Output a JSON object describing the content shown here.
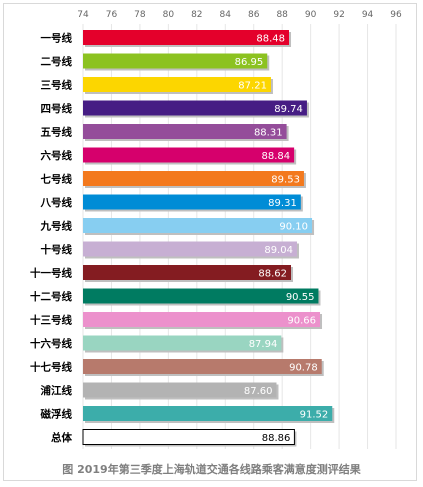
{
  "chart_data": {
    "type": "bar",
    "orientation": "horizontal",
    "title": "图   2019年第三季度上海轨道交通各线路乘客满意度测评结果",
    "xlim": [
      74,
      96
    ],
    "ticks": [
      74,
      76,
      78,
      80,
      82,
      84,
      86,
      88,
      90,
      92,
      94,
      96
    ],
    "grid": true,
    "categories": [
      "一号线",
      "二号线",
      "三号线",
      "四号线",
      "五号线",
      "六号线",
      "七号线",
      "八号线",
      "九号线",
      "十号线",
      "十一号线",
      "十二号线",
      "十三号线",
      "十六号线",
      "十七号线",
      "浦江线",
      "磁浮线",
      "总体"
    ],
    "values": [
      88.48,
      86.95,
      87.21,
      89.74,
      88.31,
      88.84,
      89.53,
      89.31,
      90.1,
      89.04,
      88.62,
      90.55,
      90.66,
      87.94,
      90.78,
      87.6,
      91.52,
      88.86
    ],
    "labels": [
      "88.48",
      "86.95",
      "87.21",
      "89.74",
      "88.31",
      "88.84",
      "89.53",
      "89.31",
      "90.10",
      "89.04",
      "88.62",
      "90.55",
      "90.66",
      "87.94",
      "90.78",
      "87.60",
      "91.52",
      "88.86"
    ],
    "colors": [
      "#e4002b",
      "#8cc220",
      "#fcd600",
      "#461d84",
      "#944d9a",
      "#d6006c",
      "#f3791d",
      "#008cd6",
      "#87cef1",
      "#c7afd3",
      "#841c21",
      "#007b61",
      "#ec91cc",
      "#99d5c1",
      "#b77a6c",
      "#b3b3b3",
      "#3cadaa",
      "#ffffff"
    ],
    "outline_color": "#000000"
  }
}
